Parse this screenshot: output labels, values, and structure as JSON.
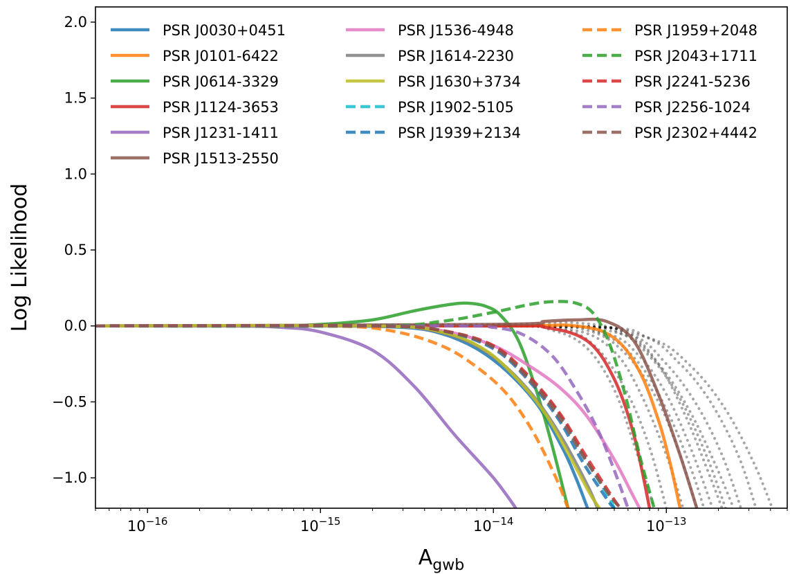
{
  "chart_data": {
    "type": "line",
    "xlabel": "A",
    "xlabel_sub": "gwb",
    "ylabel": "Log Likelihood",
    "x_scale": "log",
    "xlim": [
      5e-17,
      5e-13
    ],
    "ylim": [
      -1.2,
      2.1
    ],
    "x_ticks": [
      {
        "value": 1e-16,
        "base": "10",
        "exp": "−16"
      },
      {
        "value": 1e-15,
        "base": "10",
        "exp": "−15"
      },
      {
        "value": 1e-14,
        "base": "10",
        "exp": "−14"
      },
      {
        "value": 1e-13,
        "base": "10",
        "exp": "−13"
      }
    ],
    "y_ticks": [
      {
        "value": 2.0,
        "label": "2.0"
      },
      {
        "value": 1.5,
        "label": "1.5"
      },
      {
        "value": 1.0,
        "label": "1.0"
      },
      {
        "value": 0.5,
        "label": "0.5"
      },
      {
        "value": 0.0,
        "label": "0.0"
      },
      {
        "value": -0.5,
        "label": "−0.5"
      },
      {
        "value": -1.0,
        "label": "−1.0"
      }
    ],
    "grid": false,
    "legend_position": "top",
    "series": [
      {
        "name": "PSR J0030+0451",
        "color": "#1f77b4",
        "style": "solid",
        "points": [
          [
            5e-17,
            0
          ],
          [
            1e-15,
            0
          ],
          [
            3e-15,
            -0.01
          ],
          [
            5e-15,
            -0.05
          ],
          [
            8e-15,
            -0.15
          ],
          [
            1.2e-14,
            -0.3
          ],
          [
            1.8e-14,
            -0.52
          ],
          [
            2.5e-14,
            -0.8
          ],
          [
            3e-14,
            -1.0
          ],
          [
            3.5e-14,
            -1.2
          ]
        ]
      },
      {
        "name": "PSR J0101-6422",
        "color": "#ff7f0e",
        "style": "solid",
        "points": [
          [
            5e-17,
            0
          ],
          [
            1e-14,
            0
          ],
          [
            3e-14,
            0.0
          ],
          [
            5e-14,
            -0.08
          ],
          [
            7e-14,
            -0.3
          ],
          [
            9e-14,
            -0.62
          ],
          [
            1.05e-13,
            -0.9
          ],
          [
            1.2e-13,
            -1.2
          ]
        ]
      },
      {
        "name": "PSR J0614-3329",
        "color": "#2ca02c",
        "style": "solid",
        "points": [
          [
            5e-17,
            0
          ],
          [
            5e-16,
            0.0
          ],
          [
            1e-15,
            0.01
          ],
          [
            2e-15,
            0.04
          ],
          [
            3.5e-15,
            0.1
          ],
          [
            5.5e-15,
            0.14
          ],
          [
            7e-15,
            0.15
          ],
          [
            9e-15,
            0.13
          ],
          [
            1.1e-14,
            0.07
          ],
          [
            1.4e-14,
            -0.1
          ],
          [
            1.8e-14,
            -0.45
          ],
          [
            2.2e-14,
            -0.8
          ],
          [
            2.7e-14,
            -1.2
          ]
        ]
      },
      {
        "name": "PSR J1124-3653",
        "color": "#d62728",
        "style": "solid",
        "points": [
          [
            5e-17,
            0
          ],
          [
            1e-14,
            0
          ],
          [
            2e-14,
            -0.01
          ],
          [
            3.5e-14,
            -0.1
          ],
          [
            5e-14,
            -0.35
          ],
          [
            6.5e-14,
            -0.72
          ],
          [
            8e-14,
            -1.2
          ]
        ]
      },
      {
        "name": "PSR J1231-1411",
        "color": "#9467bd",
        "style": "solid",
        "points": [
          [
            5e-17,
            0
          ],
          [
            3e-16,
            0
          ],
          [
            6e-16,
            -0.01
          ],
          [
            1e-15,
            -0.04
          ],
          [
            2e-15,
            -0.16
          ],
          [
            3.5e-15,
            -0.4
          ],
          [
            6e-15,
            -0.72
          ],
          [
            1e-14,
            -1.0
          ],
          [
            1.35e-14,
            -1.2
          ]
        ]
      },
      {
        "name": "PSR J1513-2550",
        "color": "#8c564b",
        "style": "solid",
        "points": [
          [
            5e-17,
            0
          ],
          [
            1e-14,
            0.01
          ],
          [
            2e-14,
            0.03
          ],
          [
            3e-14,
            0.04
          ],
          [
            4.5e-14,
            0.03
          ],
          [
            6.5e-14,
            -0.1
          ],
          [
            9e-14,
            -0.45
          ],
          [
            1.2e-13,
            -0.85
          ],
          [
            1.5e-13,
            -1.2
          ]
        ]
      },
      {
        "name": "PSR J1536-4948",
        "color": "#e377c2",
        "style": "solid",
        "points": [
          [
            5e-17,
            0
          ],
          [
            2e-15,
            0
          ],
          [
            5e-15,
            -0.03
          ],
          [
            1e-14,
            -0.13
          ],
          [
            1.7e-14,
            -0.28
          ],
          [
            2.5e-14,
            -0.42
          ],
          [
            3.5e-14,
            -0.6
          ],
          [
            5e-14,
            -0.88
          ],
          [
            6.3e-14,
            -1.1
          ],
          [
            7e-14,
            -1.2
          ]
        ]
      },
      {
        "name": "PSR J1614-2230",
        "color": "#7f7f7f",
        "style": "solid",
        "points": [
          [
            5e-17,
            0
          ],
          [
            2e-15,
            0
          ],
          [
            4e-15,
            -0.02
          ],
          [
            7e-15,
            -0.1
          ],
          [
            1.1e-14,
            -0.24
          ],
          [
            1.7e-14,
            -0.46
          ],
          [
            2.5e-14,
            -0.74
          ],
          [
            3.5e-14,
            -1.05
          ],
          [
            4e-14,
            -1.2
          ]
        ]
      },
      {
        "name": "PSR J1630+3734",
        "color": "#bcbd22",
        "style": "solid",
        "points": [
          [
            5e-17,
            0
          ],
          [
            2e-15,
            0
          ],
          [
            5e-15,
            -0.04
          ],
          [
            9e-15,
            -0.16
          ],
          [
            1.4e-14,
            -0.36
          ],
          [
            2e-14,
            -0.58
          ],
          [
            2.8e-14,
            -0.87
          ],
          [
            3.6e-14,
            -1.1
          ],
          [
            4.1e-14,
            -1.2
          ]
        ]
      },
      {
        "name": "PSR J1902-5105",
        "color": "#17becf",
        "style": "dashed",
        "points": [
          [
            5e-17,
            0
          ],
          [
            2e-15,
            0
          ],
          [
            5e-15,
            -0.03
          ],
          [
            1e-14,
            -0.14
          ],
          [
            1.6e-14,
            -0.34
          ],
          [
            2.4e-14,
            -0.58
          ],
          [
            3.3e-14,
            -0.85
          ],
          [
            4.5e-14,
            -1.1
          ],
          [
            5e-14,
            -1.2
          ]
        ]
      },
      {
        "name": "PSR J1939+2134",
        "color": "#1f77b4",
        "style": "dashed",
        "points": [
          [
            5e-17,
            0
          ],
          [
            2e-15,
            0
          ],
          [
            5e-15,
            -0.03
          ],
          [
            1e-14,
            -0.15
          ],
          [
            1.6e-14,
            -0.36
          ],
          [
            2.4e-14,
            -0.62
          ],
          [
            3.3e-14,
            -0.9
          ],
          [
            4.6e-14,
            -1.15
          ],
          [
            5e-14,
            -1.2
          ]
        ]
      },
      {
        "name": "PSR J1959+2048",
        "color": "#ff7f0e",
        "style": "dashed",
        "points": [
          [
            5e-17,
            0
          ],
          [
            1e-15,
            0
          ],
          [
            2.5e-15,
            -0.03
          ],
          [
            5e-15,
            -0.13
          ],
          [
            8e-15,
            -0.27
          ],
          [
            1.2e-14,
            -0.45
          ],
          [
            1.7e-14,
            -0.7
          ],
          [
            2.3e-14,
            -1.0
          ],
          [
            2.7e-14,
            -1.2
          ]
        ]
      },
      {
        "name": "PSR J2043+1711",
        "color": "#2ca02c",
        "style": "dashed",
        "points": [
          [
            5e-17,
            0
          ],
          [
            2e-15,
            0.0
          ],
          [
            5e-15,
            0.03
          ],
          [
            1e-14,
            0.09
          ],
          [
            1.6e-14,
            0.14
          ],
          [
            2.2e-14,
            0.16
          ],
          [
            3e-14,
            0.15
          ],
          [
            3.8e-14,
            0.08
          ],
          [
            4.7e-14,
            -0.12
          ],
          [
            5.8e-14,
            -0.46
          ],
          [
            7e-14,
            -0.85
          ],
          [
            8.5e-14,
            -1.2
          ]
        ]
      },
      {
        "name": "PSR J2241-5236",
        "color": "#d62728",
        "style": "dashed",
        "points": [
          [
            5e-17,
            0
          ],
          [
            2e-15,
            0
          ],
          [
            5e-15,
            -0.03
          ],
          [
            1e-14,
            -0.13
          ],
          [
            1.6e-14,
            -0.33
          ],
          [
            2.4e-14,
            -0.57
          ],
          [
            3.4e-14,
            -0.85
          ],
          [
            4.7e-14,
            -1.1
          ],
          [
            5.4e-14,
            -1.2
          ]
        ]
      },
      {
        "name": "PSR J2256-1024",
        "color": "#9467bd",
        "style": "dashed",
        "points": [
          [
            5e-17,
            0
          ],
          [
            5e-15,
            0
          ],
          [
            1e-14,
            -0.01
          ],
          [
            1.5e-14,
            -0.06
          ],
          [
            2.2e-14,
            -0.2
          ],
          [
            3e-14,
            -0.42
          ],
          [
            4e-14,
            -0.68
          ],
          [
            5e-14,
            -0.95
          ],
          [
            6e-14,
            -1.2
          ]
        ]
      },
      {
        "name": "PSR J2302+4442",
        "color": "#8c564b",
        "style": "dashed",
        "points": [
          [
            5e-17,
            0
          ],
          [
            2e-15,
            0
          ],
          [
            5e-15,
            -0.03
          ],
          [
            1e-14,
            -0.14
          ],
          [
            1.6e-14,
            -0.35
          ],
          [
            2.4e-14,
            -0.6
          ],
          [
            3.4e-14,
            -0.88
          ],
          [
            4.8e-14,
            -1.13
          ],
          [
            5.5e-14,
            -1.2
          ]
        ]
      }
    ],
    "background_curves": {
      "color": "#000000",
      "style": "dotted",
      "curves": [
        [
          [
            5e-17,
            0
          ],
          [
            1e-14,
            0
          ],
          [
            2.5e-14,
            -0.02
          ],
          [
            4e-14,
            -0.15
          ],
          [
            6e-14,
            -0.45
          ],
          [
            8e-14,
            -0.8
          ],
          [
            1e-13,
            -1.2
          ]
        ],
        [
          [
            5e-17,
            0
          ],
          [
            1e-14,
            0
          ],
          [
            3e-14,
            -0.03
          ],
          [
            5e-14,
            -0.17
          ],
          [
            7e-14,
            -0.43
          ],
          [
            1e-13,
            -0.85
          ],
          [
            1.25e-13,
            -1.2
          ]
        ],
        [
          [
            5e-17,
            0
          ],
          [
            1.2e-14,
            0
          ],
          [
            3.5e-14,
            -0.03
          ],
          [
            6e-14,
            -0.2
          ],
          [
            9e-14,
            -0.5
          ],
          [
            1.2e-13,
            -0.85
          ],
          [
            1.5e-13,
            -1.2
          ]
        ],
        [
          [
            5e-17,
            0
          ],
          [
            1.5e-14,
            0
          ],
          [
            4.5e-14,
            -0.05
          ],
          [
            7e-14,
            -0.2
          ],
          [
            1e-13,
            -0.45
          ],
          [
            1.4e-13,
            -0.82
          ],
          [
            1.85e-13,
            -1.2
          ]
        ],
        [
          [
            5e-17,
            0
          ],
          [
            1.5e-14,
            0
          ],
          [
            5e-14,
            -0.04
          ],
          [
            8e-14,
            -0.2
          ],
          [
            1.2e-13,
            -0.48
          ],
          [
            1.7e-13,
            -0.85
          ],
          [
            2.2e-13,
            -1.2
          ]
        ],
        [
          [
            5e-17,
            0
          ],
          [
            2e-14,
            0
          ],
          [
            6e-14,
            -0.05
          ],
          [
            1e-13,
            -0.25
          ],
          [
            1.5e-13,
            -0.52
          ],
          [
            2.1e-13,
            -0.85
          ],
          [
            2.7e-13,
            -1.2
          ]
        ],
        [
          [
            5e-17,
            0
          ],
          [
            2e-14,
            0
          ],
          [
            7e-14,
            -0.06
          ],
          [
            1.2e-13,
            -0.25
          ],
          [
            1.8e-13,
            -0.5
          ],
          [
            2.6e-13,
            -0.85
          ],
          [
            3.3e-13,
            -1.2
          ]
        ],
        [
          [
            5e-17,
            0
          ],
          [
            2.5e-14,
            0
          ],
          [
            8e-14,
            -0.08
          ],
          [
            1.4e-13,
            -0.27
          ],
          [
            2.2e-13,
            -0.55
          ],
          [
            3.2e-13,
            -0.9
          ],
          [
            4.1e-13,
            -1.2
          ]
        ],
        [
          [
            5e-17,
            0
          ],
          [
            1e-14,
            0.01
          ],
          [
            3e-14,
            0.02
          ],
          [
            6e-14,
            -0.05
          ],
          [
            9e-14,
            -0.25
          ],
          [
            1.3e-13,
            -0.6
          ],
          [
            1.8e-13,
            -1.0
          ],
          [
            2.1e-13,
            -1.2
          ]
        ],
        [
          [
            5e-17,
            0
          ],
          [
            1e-14,
            0
          ],
          [
            2.2e-14,
            -0.03
          ],
          [
            3.5e-14,
            -0.15
          ],
          [
            5e-14,
            -0.42
          ],
          [
            6.5e-14,
            -0.78
          ],
          [
            8e-14,
            -1.1
          ],
          [
            8.5e-14,
            -1.2
          ]
        ],
        [
          [
            5e-17,
            0
          ],
          [
            1.5e-14,
            0
          ],
          [
            4e-14,
            -0.04
          ],
          [
            7e-14,
            -0.25
          ],
          [
            1.05e-13,
            -0.6
          ],
          [
            1.4e-13,
            -0.95
          ],
          [
            1.65e-13,
            -1.2
          ]
        ],
        [
          [
            5e-17,
            0
          ],
          [
            2e-14,
            0
          ],
          [
            5.5e-14,
            -0.05
          ],
          [
            9e-14,
            -0.25
          ],
          [
            1.35e-13,
            -0.55
          ],
          [
            1.9e-13,
            -0.9
          ],
          [
            2.45e-13,
            -1.2
          ]
        ]
      ]
    }
  }
}
